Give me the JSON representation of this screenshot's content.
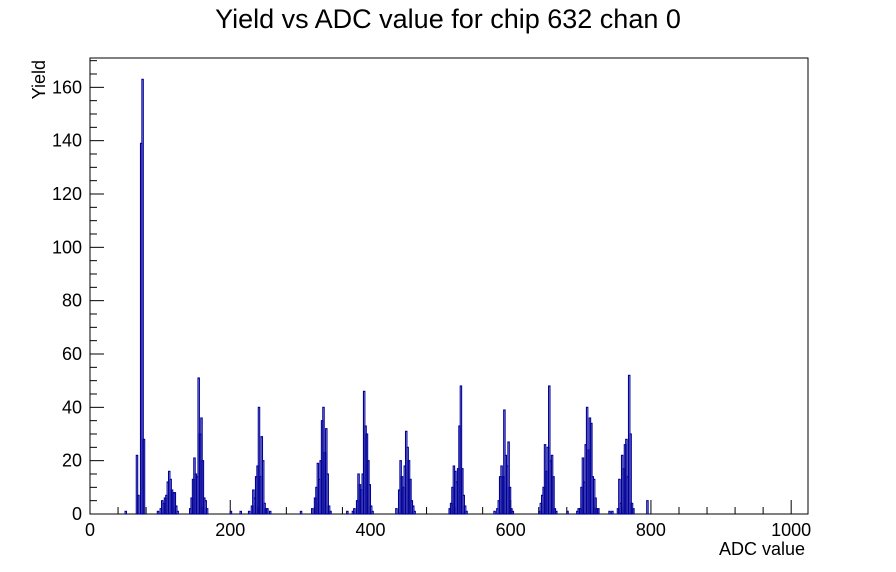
{
  "chart_data": {
    "type": "histogram",
    "title": "Yield vs ADC value for chip 632 chan 0",
    "xlabel": "ADC value",
    "ylabel": "Yield",
    "xlim": [
      0,
      1024
    ],
    "ylim": [
      0,
      171
    ],
    "x_ticks": [
      0,
      200,
      400,
      600,
      800,
      1000
    ],
    "y_ticks": [
      0,
      20,
      40,
      60,
      80,
      100,
      120,
      140,
      160
    ],
    "bin_width": 2,
    "line_color": "#000099",
    "legend": "none",
    "bins": [
      [
        50,
        1
      ],
      [
        66,
        22
      ],
      [
        68,
        7
      ],
      [
        70,
        0
      ],
      [
        72,
        139
      ],
      [
        74,
        163
      ],
      [
        76,
        28
      ],
      [
        78,
        0
      ],
      [
        96,
        1
      ],
      [
        100,
        2
      ],
      [
        102,
        5
      ],
      [
        104,
        4
      ],
      [
        106,
        6
      ],
      [
        108,
        7
      ],
      [
        110,
        12
      ],
      [
        112,
        16
      ],
      [
        114,
        13
      ],
      [
        116,
        9
      ],
      [
        118,
        8
      ],
      [
        120,
        8
      ],
      [
        122,
        3
      ],
      [
        124,
        1
      ],
      [
        142,
        2
      ],
      [
        144,
        6
      ],
      [
        146,
        13
      ],
      [
        148,
        21
      ],
      [
        150,
        15
      ],
      [
        152,
        14
      ],
      [
        154,
        51
      ],
      [
        156,
        30
      ],
      [
        158,
        36
      ],
      [
        160,
        20
      ],
      [
        162,
        6
      ],
      [
        164,
        5
      ],
      [
        166,
        2
      ],
      [
        200,
        1
      ],
      [
        214,
        1
      ],
      [
        226,
        1
      ],
      [
        230,
        3
      ],
      [
        232,
        9
      ],
      [
        234,
        6
      ],
      [
        236,
        14
      ],
      [
        238,
        18
      ],
      [
        240,
        40
      ],
      [
        242,
        14
      ],
      [
        244,
        29
      ],
      [
        246,
        20
      ],
      [
        248,
        4
      ],
      [
        250,
        2
      ],
      [
        252,
        2
      ],
      [
        256,
        1
      ],
      [
        300,
        1
      ],
      [
        316,
        2
      ],
      [
        320,
        6
      ],
      [
        322,
        10
      ],
      [
        324,
        19
      ],
      [
        326,
        13
      ],
      [
        328,
        20
      ],
      [
        330,
        35
      ],
      [
        332,
        40
      ],
      [
        334,
        23
      ],
      [
        336,
        32
      ],
      [
        338,
        15
      ],
      [
        340,
        3
      ],
      [
        342,
        1
      ],
      [
        366,
        1
      ],
      [
        374,
        1
      ],
      [
        376,
        2
      ],
      [
        380,
        5
      ],
      [
        382,
        15
      ],
      [
        384,
        11
      ],
      [
        386,
        9
      ],
      [
        388,
        15
      ],
      [
        390,
        46
      ],
      [
        392,
        33
      ],
      [
        394,
        30
      ],
      [
        396,
        20
      ],
      [
        398,
        11
      ],
      [
        400,
        3
      ],
      [
        402,
        1
      ],
      [
        436,
        2
      ],
      [
        440,
        9
      ],
      [
        442,
        20
      ],
      [
        444,
        14
      ],
      [
        446,
        10
      ],
      [
        448,
        18
      ],
      [
        450,
        31
      ],
      [
        452,
        25
      ],
      [
        454,
        20
      ],
      [
        456,
        13
      ],
      [
        458,
        5
      ],
      [
        460,
        3
      ],
      [
        462,
        1
      ],
      [
        512,
        2
      ],
      [
        514,
        4
      ],
      [
        516,
        10
      ],
      [
        518,
        18
      ],
      [
        520,
        16
      ],
      [
        522,
        12
      ],
      [
        524,
        17
      ],
      [
        526,
        33
      ],
      [
        528,
        48
      ],
      [
        530,
        17
      ],
      [
        532,
        7
      ],
      [
        534,
        3
      ],
      [
        536,
        1
      ],
      [
        576,
        1
      ],
      [
        580,
        2
      ],
      [
        582,
        5
      ],
      [
        584,
        14
      ],
      [
        586,
        18
      ],
      [
        588,
        14
      ],
      [
        590,
        39
      ],
      [
        592,
        22
      ],
      [
        594,
        18
      ],
      [
        596,
        27
      ],
      [
        598,
        10
      ],
      [
        600,
        2
      ],
      [
        602,
        1
      ],
      [
        640,
        1
      ],
      [
        642,
        4
      ],
      [
        644,
        7
      ],
      [
        646,
        10
      ],
      [
        648,
        26
      ],
      [
        650,
        16
      ],
      [
        652,
        25
      ],
      [
        654,
        48
      ],
      [
        656,
        20
      ],
      [
        658,
        22
      ],
      [
        660,
        14
      ],
      [
        662,
        2
      ],
      [
        664,
        1
      ],
      [
        680,
        1
      ],
      [
        694,
        1
      ],
      [
        696,
        2
      ],
      [
        698,
        2
      ],
      [
        700,
        10
      ],
      [
        702,
        21
      ],
      [
        704,
        12
      ],
      [
        706,
        26
      ],
      [
        708,
        40
      ],
      [
        710,
        24
      ],
      [
        712,
        36
      ],
      [
        714,
        34
      ],
      [
        716,
        14
      ],
      [
        718,
        13
      ],
      [
        720,
        6
      ],
      [
        722,
        2
      ],
      [
        724,
        2
      ],
      [
        740,
        1
      ],
      [
        744,
        1
      ],
      [
        752,
        2
      ],
      [
        754,
        13
      ],
      [
        756,
        4
      ],
      [
        758,
        22
      ],
      [
        760,
        17
      ],
      [
        762,
        26
      ],
      [
        764,
        28
      ],
      [
        766,
        14
      ],
      [
        768,
        52
      ],
      [
        770,
        30
      ],
      [
        772,
        4
      ],
      [
        774,
        2
      ],
      [
        794,
        5
      ]
    ]
  }
}
